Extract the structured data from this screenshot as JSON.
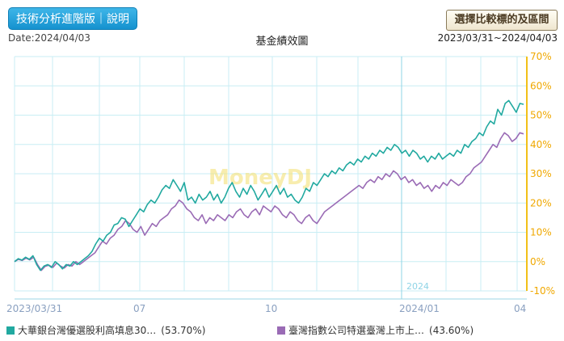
{
  "header": {
    "tech_button": "技術分析進階版｜說明",
    "compare_button": "選擇比較標的及區間",
    "date_label": "Date:2024/04/03",
    "chart_title": "基金績效圖",
    "range_label": "2023/03/31~2024/04/03"
  },
  "colors": {
    "fund": "#21a9a0",
    "index": "#9a6bb5",
    "zero_line": "#f2c018",
    "grid": "#c8eef4"
  },
  "chart_data": {
    "type": "line",
    "title": "基金績效圖",
    "x_ticks": [
      "2023/03/31",
      "07",
      "10",
      "2024/01",
      "04"
    ],
    "y_ticks": [
      "70%",
      "60%",
      "50%",
      "40%",
      "30%",
      "20%",
      "10%",
      "0%",
      "-10%"
    ],
    "ylim": [
      -10,
      70
    ],
    "year_marker": "2024",
    "watermark": "MoneyDJ",
    "series": [
      {
        "name": "大華銀台灣優選股利高填息30…",
        "final_label": "(53.70%)",
        "values": [
          0,
          1,
          0.5,
          1.5,
          0.8,
          2,
          -1,
          -3,
          -1.5,
          -1,
          -2,
          0,
          -1,
          -2.5,
          -1,
          -1.5,
          0,
          -1,
          0,
          1,
          2,
          3.5,
          6,
          8,
          7,
          9,
          10,
          12.5,
          13,
          15,
          14.5,
          12,
          14,
          16,
          18,
          17,
          19.5,
          21,
          20,
          22,
          24.5,
          26,
          25,
          28,
          26,
          24,
          27,
          21,
          22,
          20,
          23,
          21,
          22,
          24,
          21,
          23,
          20,
          22,
          25,
          27,
          24,
          22,
          25,
          23,
          26,
          24,
          21,
          23,
          25,
          22,
          24,
          26,
          23,
          25,
          22,
          23,
          21,
          20,
          22,
          25,
          24,
          27,
          26,
          28,
          30,
          29,
          31,
          30,
          32,
          31,
          33,
          34,
          33,
          35,
          34,
          36,
          35,
          37,
          36,
          38,
          37,
          39,
          38,
          40,
          39,
          37,
          38,
          36,
          38,
          37,
          35,
          36,
          34,
          36,
          35,
          37,
          35,
          36,
          37,
          36,
          38,
          37,
          40,
          39,
          41,
          42,
          44,
          43,
          46,
          48,
          47,
          52,
          50,
          54,
          55,
          53,
          51,
          54,
          53.7
        ]
      },
      {
        "name": "臺灣指數公司特選臺灣上市上…",
        "final_label": "(43.60%)",
        "values": [
          0,
          0.8,
          0.4,
          1.2,
          0.6,
          1.5,
          -1,
          -3,
          -1.6,
          -1.2,
          -2,
          -0.5,
          -1.5,
          -2.2,
          -1,
          -1.5,
          0,
          -1,
          0,
          1,
          2,
          3,
          5,
          7,
          6,
          8,
          9,
          11,
          12,
          14,
          13,
          11,
          10,
          12,
          9,
          11,
          13,
          12,
          14,
          15,
          16,
          18,
          19,
          21,
          20,
          18,
          17,
          15,
          14,
          16,
          13,
          15,
          14,
          16,
          15,
          14,
          16,
          15,
          17,
          18,
          16,
          15,
          17,
          18,
          16,
          19,
          18,
          17,
          19,
          18,
          16,
          15,
          17,
          16,
          14,
          13,
          15,
          16,
          14,
          13,
          15,
          17,
          18,
          19,
          20,
          21,
          22,
          23,
          24,
          25,
          26,
          25,
          27,
          28,
          27,
          29,
          28,
          30,
          29,
          31,
          30,
          28,
          29,
          27,
          28,
          26,
          27,
          25,
          26,
          24,
          26,
          25,
          27,
          26,
          28,
          27,
          26,
          27,
          29,
          30,
          32,
          33,
          34,
          36,
          38,
          40,
          39,
          42,
          44,
          43,
          41,
          42,
          44,
          43.6
        ]
      }
    ]
  }
}
